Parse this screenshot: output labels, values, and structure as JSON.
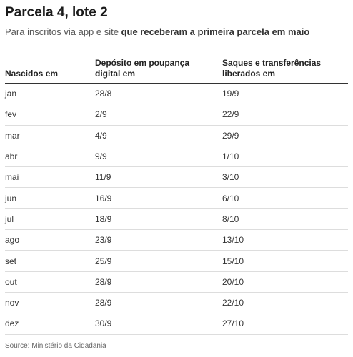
{
  "title": "Parcela 4, lote 2",
  "subtitle": {
    "normal": "Para inscritos via app e site ",
    "bold": "que receberam a primeira parcela em maio"
  },
  "table": {
    "headers": [
      "Nascidos em",
      "Depósito em poupança digital em",
      "Saques e transferências liberados em"
    ],
    "rows": [
      [
        "jan",
        "28/8",
        "19/9"
      ],
      [
        "fev",
        "2/9",
        "22/9"
      ],
      [
        "mar",
        "4/9",
        "29/9"
      ],
      [
        "abr",
        "9/9",
        "1/10"
      ],
      [
        "mai",
        "11/9",
        "3/10"
      ],
      [
        "jun",
        "16/9",
        "6/10"
      ],
      [
        "jul",
        "18/9",
        "8/10"
      ],
      [
        "ago",
        "23/9",
        "13/10"
      ],
      [
        "set",
        "25/9",
        "15/10"
      ],
      [
        "out",
        "28/9",
        "20/10"
      ],
      [
        "nov",
        "28/9",
        "22/10"
      ],
      [
        "dez",
        "30/9",
        "27/10"
      ]
    ]
  },
  "source": "Source: Ministério da Cidadania"
}
